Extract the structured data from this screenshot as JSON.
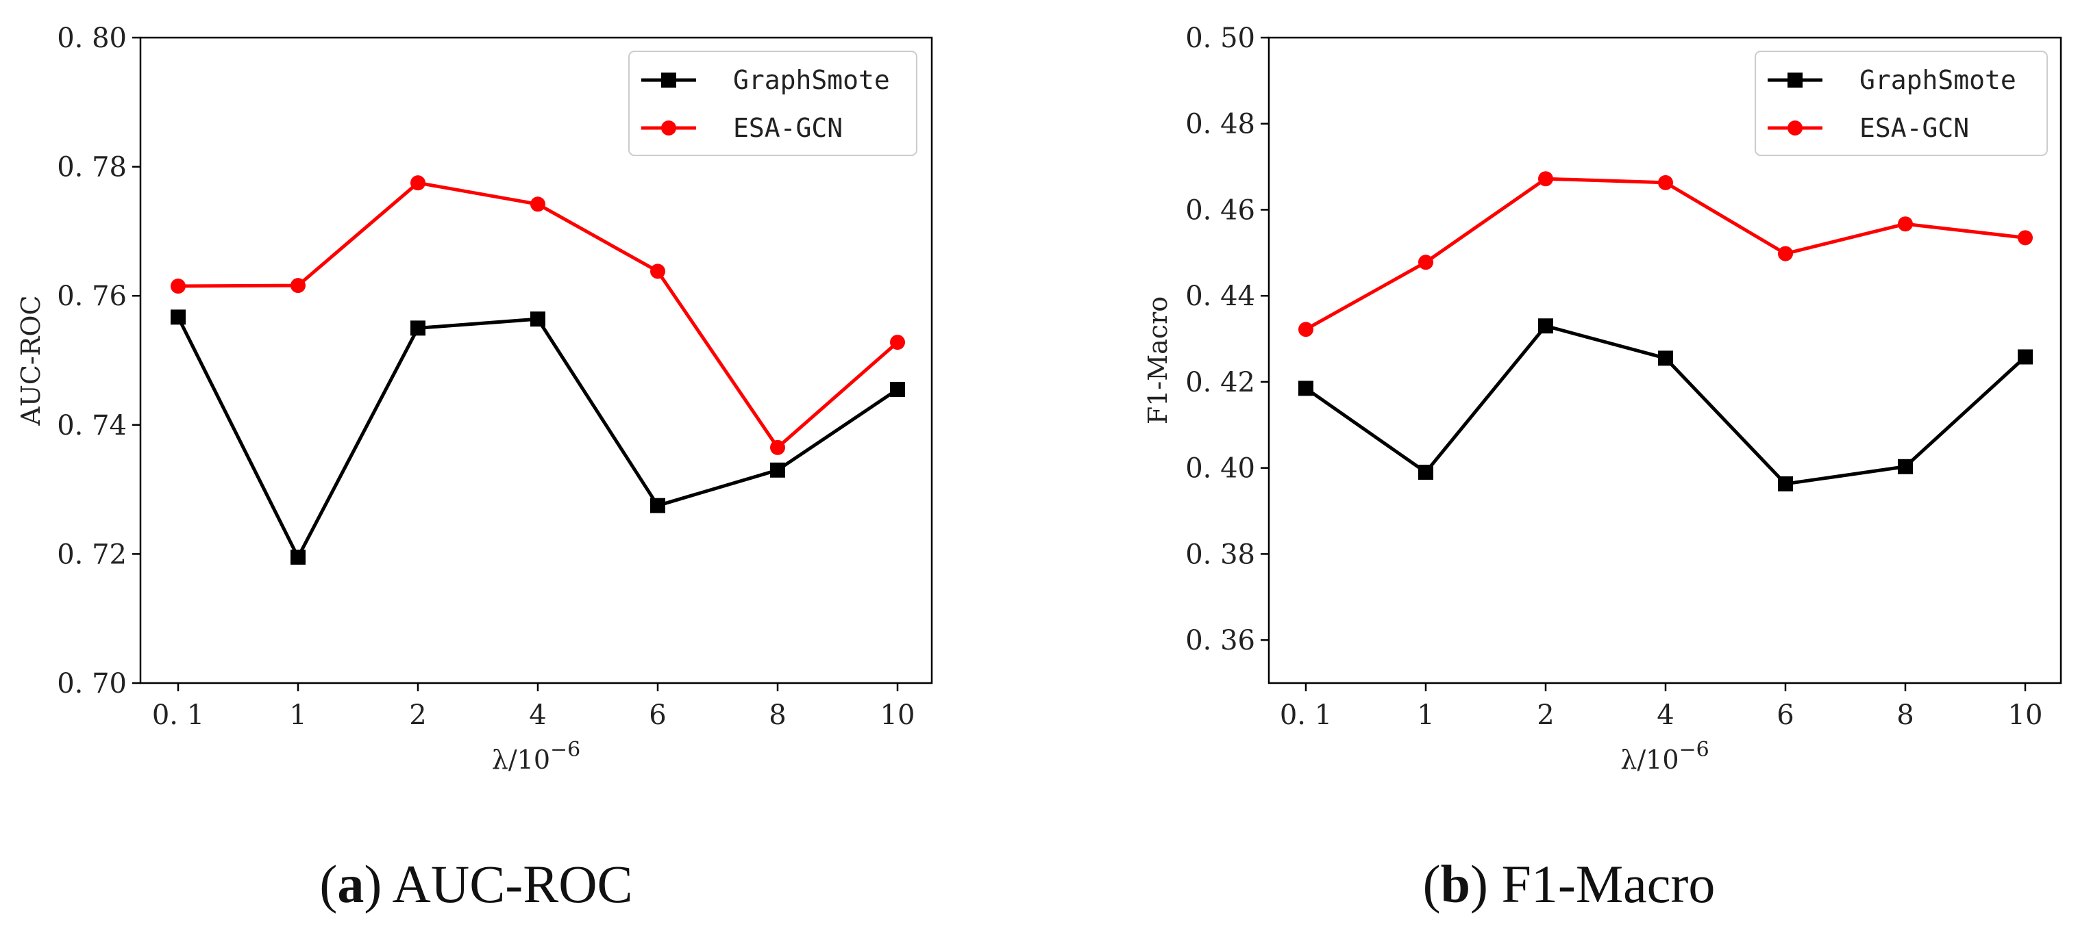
{
  "chart_data": [
    {
      "type": "line",
      "caption_letter": "a",
      "caption_text": "AUC-ROC",
      "categories": [
        "0.1",
        "1",
        "2",
        "4",
        "6",
        "8",
        "10"
      ],
      "ylabel": "AUC-ROC",
      "xlabel_base": "λ/10",
      "xlabel_exp": "−6",
      "ylim": [
        0.7,
        0.8
      ],
      "yticks": [
        0.7,
        0.72,
        0.74,
        0.76,
        0.78,
        0.8
      ],
      "ytick_labels": [
        "0. 70",
        "0. 72",
        "0. 74",
        "0. 76",
        "0. 78",
        "0. 80"
      ],
      "xtick_labels": [
        "0. 1",
        "1",
        "2",
        "4",
        "6",
        "8",
        "10"
      ],
      "legend_position": "top-right",
      "series": [
        {
          "name": "GraphSmote",
          "color": "#000000",
          "marker": "square",
          "values": [
            0.7567,
            0.7195,
            0.755,
            0.7564,
            0.7275,
            0.733,
            0.7455
          ]
        },
        {
          "name": "ESA-GCN",
          "color": "#ff0000",
          "marker": "circle",
          "values": [
            0.7615,
            0.7616,
            0.7775,
            0.7742,
            0.7638,
            0.7365,
            0.7528
          ]
        }
      ]
    },
    {
      "type": "line",
      "caption_letter": "b",
      "caption_text": "F1-Macro",
      "categories": [
        "0.1",
        "1",
        "2",
        "4",
        "6",
        "8",
        "10"
      ],
      "ylabel": "F1-Macro",
      "xlabel_base": "λ/10",
      "xlabel_exp": "−6",
      "ylim": [
        0.35,
        0.5
      ],
      "yticks": [
        0.36,
        0.38,
        0.4,
        0.42,
        0.44,
        0.46,
        0.48,
        0.5
      ],
      "ytick_labels": [
        "0. 36",
        "0. 38",
        "0. 40",
        "0. 42",
        "0. 44",
        "0. 46",
        "0. 48",
        "0. 50"
      ],
      "xtick_labels": [
        "0. 1",
        "1",
        "2",
        "4",
        "6",
        "8",
        "10"
      ],
      "legend_position": "top-right",
      "series": [
        {
          "name": "GraphSmote",
          "color": "#000000",
          "marker": "square",
          "values": [
            0.4185,
            0.399,
            0.433,
            0.4255,
            0.3963,
            0.4003,
            0.4258
          ]
        },
        {
          "name": "ESA-GCN",
          "color": "#ff0000",
          "marker": "circle",
          "values": [
            0.4322,
            0.4478,
            0.4672,
            0.4663,
            0.4498,
            0.4567,
            0.4535
          ]
        }
      ]
    }
  ]
}
